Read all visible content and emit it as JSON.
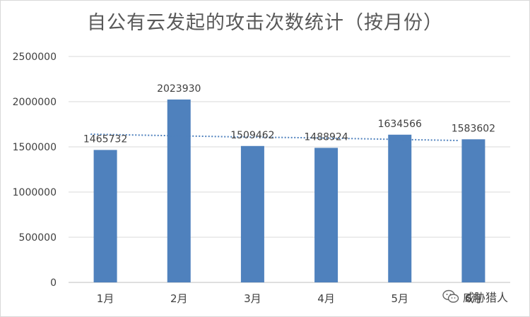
{
  "chart_data": {
    "type": "bar",
    "title": "自公有云发起的攻击次数统计（按月份）",
    "categories": [
      "1月",
      "2月",
      "3月",
      "4月",
      "5月",
      "6月"
    ],
    "values": [
      1465732,
      2023930,
      1509462,
      1488924,
      1634566,
      1583602
    ],
    "trendline": [
      1640000,
      1625000,
      1610000,
      1600000,
      1585000,
      1570000
    ],
    "ylim": [
      0,
      2500000
    ],
    "yticks": [
      0,
      500000,
      1000000,
      1500000,
      2000000,
      2500000
    ],
    "grid": true,
    "legend": "none",
    "colors": {
      "bar": "#4f81bd",
      "trendline": "#4f81bd",
      "grid": "#d9d9d9",
      "text": "#404040"
    }
  },
  "watermark": {
    "text": "威胁猎人",
    "icon": "wechat-icon"
  }
}
